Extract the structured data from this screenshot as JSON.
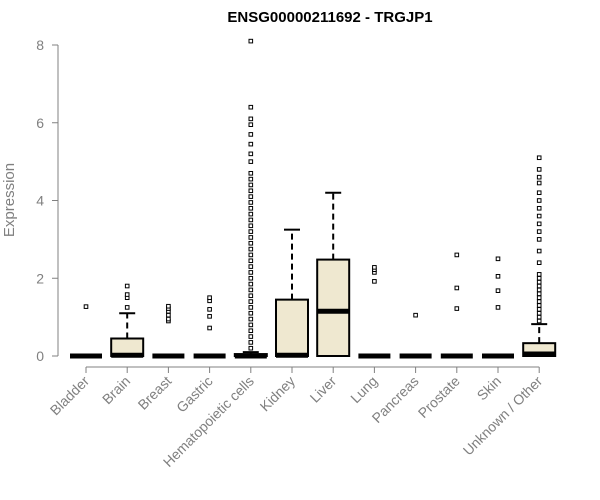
{
  "chart_data": {
    "type": "boxplot",
    "title": "ENSG00000211692 - TRGJP1",
    "xlabel": "",
    "ylabel": "Expression",
    "ylim": [
      0,
      8
    ],
    "yticks": [
      0,
      2,
      4,
      6,
      8
    ],
    "grid": false,
    "legend": "none",
    "box_fill": "#efe8d0",
    "box_stroke": "#000000",
    "categories": [
      "Bladder",
      "Brain",
      "Breast",
      "Gastric",
      "Hematopoietic cells",
      "Kidney",
      "Liver",
      "Lung",
      "Pancreas",
      "Prostate",
      "Skin",
      "Unknown / Other"
    ],
    "boxes": [
      {
        "q1": 0,
        "median": 0,
        "q3": 0,
        "whisker_low": 0,
        "whisker_high": 0,
        "outliers": [
          1.27
        ]
      },
      {
        "q1": 0,
        "median": 0.02,
        "q3": 0.45,
        "whisker_low": 0,
        "whisker_high": 1.1,
        "outliers": [
          1.25,
          1.5,
          1.58,
          1.8
        ]
      },
      {
        "q1": 0,
        "median": 0,
        "q3": 0,
        "whisker_low": 0,
        "whisker_high": 0,
        "outliers": [
          0.9,
          0.95,
          1.05,
          1.15,
          1.22,
          1.28
        ]
      },
      {
        "q1": 0,
        "median": 0,
        "q3": 0,
        "whisker_low": 0,
        "whisker_high": 0,
        "outliers": [
          0.72,
          1.02,
          1.2,
          1.42,
          1.5
        ]
      },
      {
        "q1": 0,
        "median": 0,
        "q3": 0.05,
        "whisker_low": 0,
        "whisker_high": 0.1,
        "outliers": [
          0.2,
          0.35,
          0.5,
          0.65,
          0.8,
          0.95,
          1.1,
          1.25,
          1.4,
          1.55,
          1.7,
          1.85,
          2.0,
          2.15,
          2.3,
          2.45,
          2.6,
          2.75,
          2.9,
          3.05,
          3.2,
          3.35,
          3.5,
          3.65,
          3.8,
          3.95,
          4.1,
          4.25,
          4.4,
          4.55,
          4.7,
          5.0,
          5.2,
          5.45,
          5.7,
          5.95,
          6.1,
          6.4,
          8.1
        ]
      },
      {
        "q1": 0,
        "median": 0.02,
        "q3": 1.45,
        "whisker_low": 0,
        "whisker_high": 3.25,
        "outliers": []
      },
      {
        "q1": 0,
        "median": 1.15,
        "q3": 2.48,
        "whisker_low": 0,
        "whisker_high": 4.2,
        "outliers": []
      },
      {
        "q1": 0,
        "median": 0,
        "q3": 0,
        "whisker_low": 0,
        "whisker_high": 0,
        "outliers": [
          1.92,
          2.15,
          2.22,
          2.28
        ]
      },
      {
        "q1": 0,
        "median": 0,
        "q3": 0,
        "whisker_low": 0,
        "whisker_high": 0,
        "outliers": [
          1.05
        ]
      },
      {
        "q1": 0,
        "median": 0,
        "q3": 0,
        "whisker_low": 0,
        "whisker_high": 0,
        "outliers": [
          1.22,
          1.75,
          2.6
        ]
      },
      {
        "q1": 0,
        "median": 0,
        "q3": 0,
        "whisker_low": 0,
        "whisker_high": 0,
        "outliers": [
          1.25,
          1.68,
          2.05,
          2.5
        ]
      },
      {
        "q1": 0,
        "median": 0.05,
        "q3": 0.33,
        "whisker_low": 0,
        "whisker_high": 0.82,
        "outliers": [
          0.9,
          1.0,
          1.1,
          1.2,
          1.3,
          1.4,
          1.5,
          1.6,
          1.7,
          1.8,
          1.9,
          2.0,
          2.1,
          2.4,
          2.7,
          3.0,
          3.2,
          3.4,
          3.6,
          3.8,
          4.0,
          4.2,
          4.45,
          4.6,
          4.8,
          5.1
        ]
      }
    ]
  }
}
